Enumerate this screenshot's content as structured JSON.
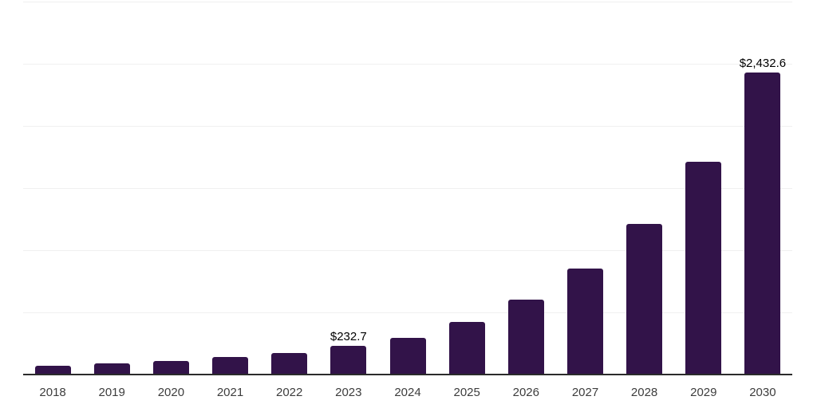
{
  "chart_data": {
    "type": "bar",
    "title": "",
    "xlabel": "",
    "ylabel": "",
    "categories": [
      "2018",
      "2019",
      "2020",
      "2021",
      "2022",
      "2023",
      "2024",
      "2025",
      "2026",
      "2027",
      "2028",
      "2029",
      "2030"
    ],
    "values": [
      72,
      88,
      112,
      142,
      176,
      232.7,
      298,
      423,
      605,
      852,
      1209,
      1714,
      2432.6
    ],
    "labeled_points": [
      {
        "category": "2023",
        "text": "$232.7"
      },
      {
        "category": "2030",
        "text": "$2,432.6"
      }
    ],
    "ylim": [
      0,
      3000
    ],
    "gridline_step": 500,
    "grid": true,
    "legend_position": "none",
    "colors": {
      "bar": "#321349",
      "gridline": "#f0f0f0",
      "axis_line": "#2b2b2b",
      "value_label": "#000000",
      "tick_label": "#3d3d3d",
      "background": "#ffffff"
    }
  }
}
